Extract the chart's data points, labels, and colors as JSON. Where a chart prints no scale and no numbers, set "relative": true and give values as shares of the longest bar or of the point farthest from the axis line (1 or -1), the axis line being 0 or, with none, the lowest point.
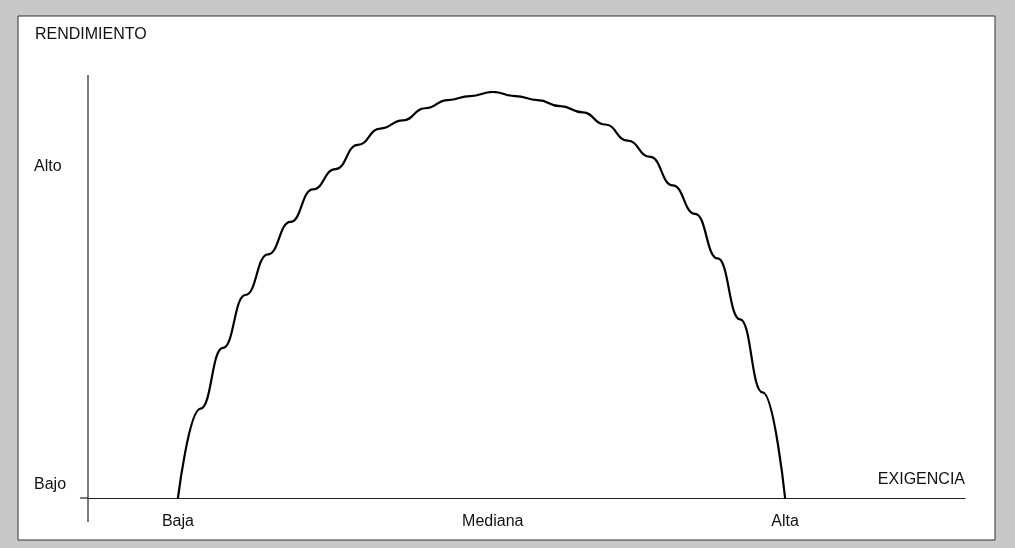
{
  "chart_data": {
    "type": "line",
    "relative": true,
    "xlabel": "EXIGENCIA",
    "ylabel": "RENDIMIENTO",
    "categories": [
      null,
      null,
      null,
      null,
      "Baja",
      null,
      null,
      null,
      null,
      null,
      null,
      null,
      null,
      null,
      null,
      null,
      null,
      null,
      "Mediana",
      null,
      null,
      null,
      null,
      null,
      null,
      null,
      null,
      null,
      null,
      null,
      null,
      "Alta",
      null,
      null,
      null,
      null,
      null,
      null,
      null,
      null
    ],
    "series": [
      {
        "color": "#000000",
        "values": [
          null,
          null,
          null,
          null,
          0,
          0.22,
          0.37,
          0.5,
          0.6,
          0.68,
          0.76,
          0.81,
          0.87,
          0.91,
          0.93,
          0.96,
          0.98,
          0.99,
          1,
          0.99,
          0.98,
          0.965,
          0.95,
          0.92,
          0.88,
          0.84,
          0.77,
          0.7,
          0.59,
          0.44,
          0.26,
          0,
          null,
          null,
          null,
          null,
          null,
          null,
          null,
          null
        ]
      }
    ],
    "annotations": [
      "Alto",
      "Bajo"
    ],
    "marker": "none",
    "line_style": "solid",
    "grid": false
  }
}
